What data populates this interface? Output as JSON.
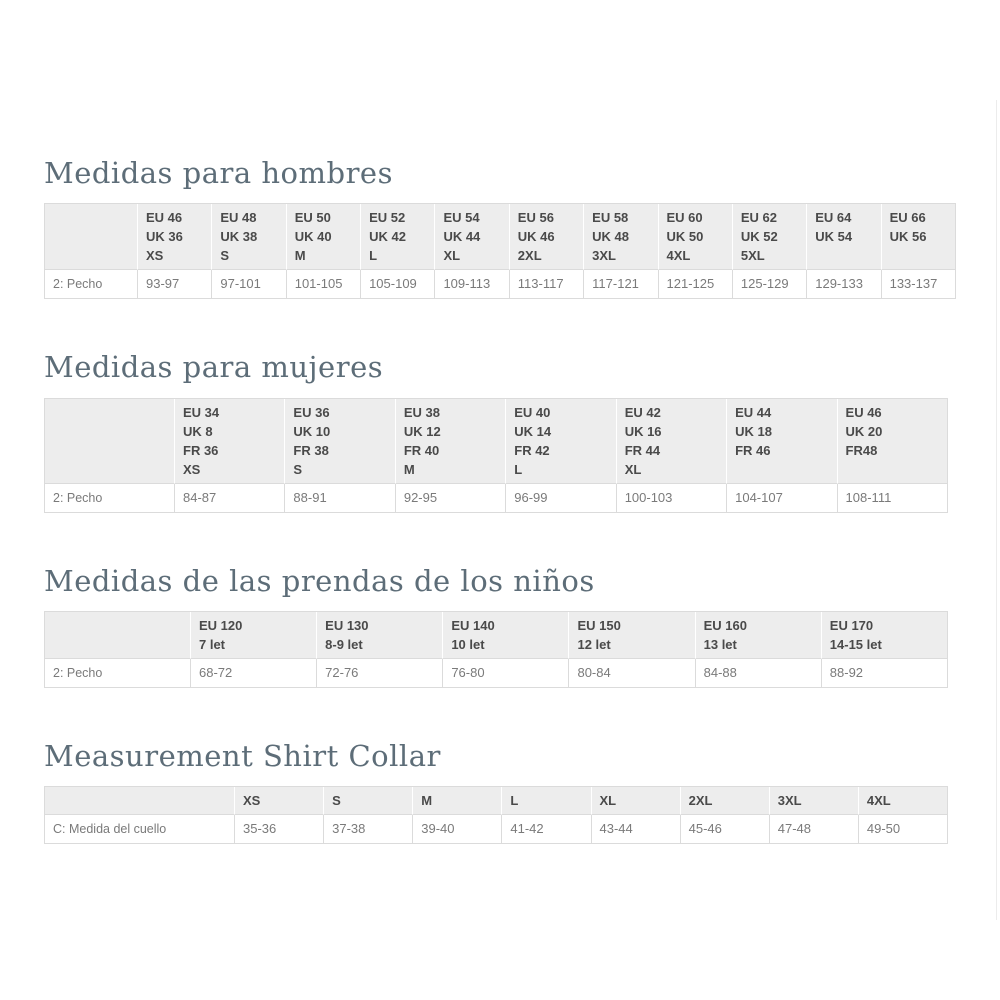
{
  "theme": {
    "title_color": "#5d6d78",
    "header_background": "#ededed",
    "header_text": "#4a4a4a",
    "body_text": "#7a7a7a",
    "border_color": "#dbdbdb"
  },
  "sections": [
    {
      "title": "Medidas para hombres",
      "row_label": "2: Pecho",
      "columns": [
        {
          "header_lines": [
            "EU 46",
            "UK 36",
            "XS"
          ],
          "value": "93-97"
        },
        {
          "header_lines": [
            "EU 48",
            "UK 38",
            "S"
          ],
          "value": "97-101"
        },
        {
          "header_lines": [
            "EU 50",
            "UK 40",
            "M"
          ],
          "value": "101-105"
        },
        {
          "header_lines": [
            "EU 52",
            "UK 42",
            "L"
          ],
          "value": "105-109"
        },
        {
          "header_lines": [
            "EU 54",
            "UK 44",
            "XL"
          ],
          "value": "109-113"
        },
        {
          "header_lines": [
            "EU 56",
            "UK 46",
            "2XL"
          ],
          "value": "113-117"
        },
        {
          "header_lines": [
            "EU 58",
            "UK 48",
            "3XL"
          ],
          "value": "117-121"
        },
        {
          "header_lines": [
            "EU 60",
            "UK 50",
            "4XL"
          ],
          "value": "121-125"
        },
        {
          "header_lines": [
            "EU 62",
            "UK 52",
            "5XL"
          ],
          "value": "125-129"
        },
        {
          "header_lines": [
            "EU 64",
            "UK 54"
          ],
          "value": "129-133"
        },
        {
          "header_lines": [
            "EU 66",
            "UK 56"
          ],
          "value": "133-137"
        }
      ]
    },
    {
      "title": "Medidas para mujeres",
      "row_label": "2: Pecho",
      "columns": [
        {
          "header_lines": [
            "EU 34",
            "UK 8",
            "FR 36",
            "XS"
          ],
          "value": "84-87"
        },
        {
          "header_lines": [
            "EU 36",
            "UK 10",
            "FR 38",
            "S"
          ],
          "value": "88-91"
        },
        {
          "header_lines": [
            "EU 38",
            "UK 12",
            "FR 40",
            "M"
          ],
          "value": "92-95"
        },
        {
          "header_lines": [
            "EU 40",
            "UK 14",
            "FR 42",
            "L"
          ],
          "value": "96-99"
        },
        {
          "header_lines": [
            "EU 42",
            "UK 16",
            "FR 44",
            "XL"
          ],
          "value": "100-103"
        },
        {
          "header_lines": [
            "EU 44",
            "UK 18",
            "FR 46"
          ],
          "value": "104-107"
        },
        {
          "header_lines": [
            "EU 46",
            "UK 20",
            "FR48"
          ],
          "value": "108-111"
        }
      ]
    },
    {
      "title": "Medidas de las prendas de los niños",
      "row_label": "2: Pecho",
      "columns": [
        {
          "header_lines": [
            "EU 120",
            "7 let"
          ],
          "value": "68-72"
        },
        {
          "header_lines": [
            "EU 130",
            "8-9 let"
          ],
          "value": "72-76"
        },
        {
          "header_lines": [
            "EU 140",
            "10 let"
          ],
          "value": "76-80"
        },
        {
          "header_lines": [
            "EU 150",
            "12 let"
          ],
          "value": "80-84"
        },
        {
          "header_lines": [
            "EU 160",
            "13 let"
          ],
          "value": "84-88"
        },
        {
          "header_lines": [
            "EU 170",
            "14-15 let"
          ],
          "value": "88-92"
        }
      ]
    },
    {
      "title": "Measurement Shirt Collar",
      "row_label": "C: Medida del cuello",
      "columns": [
        {
          "header_lines": [
            "XS"
          ],
          "value": "35-36"
        },
        {
          "header_lines": [
            "S"
          ],
          "value": "37-38"
        },
        {
          "header_lines": [
            "M"
          ],
          "value": "39-40"
        },
        {
          "header_lines": [
            "L"
          ],
          "value": "41-42"
        },
        {
          "header_lines": [
            "XL"
          ],
          "value": "43-44"
        },
        {
          "header_lines": [
            "2XL"
          ],
          "value": "45-46"
        },
        {
          "header_lines": [
            "3XL"
          ],
          "value": "47-48"
        },
        {
          "header_lines": [
            "4XL"
          ],
          "value": "49-50"
        }
      ]
    }
  ]
}
